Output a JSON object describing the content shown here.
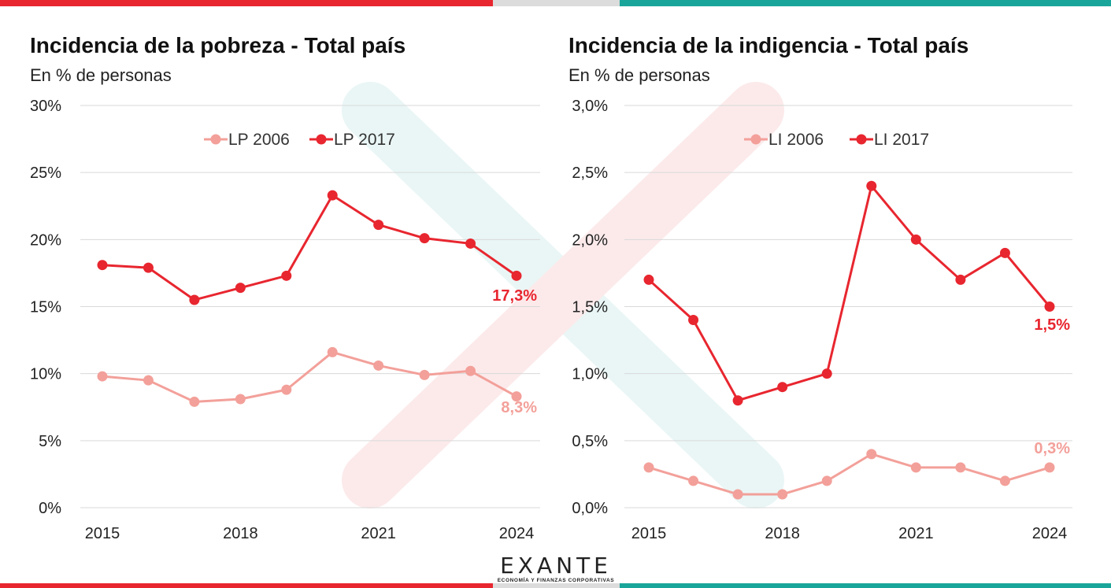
{
  "colors": {
    "red": "#e8262f",
    "pink": "#f3a09a",
    "teal": "#1aa59a",
    "grey": "#dcdcdc",
    "grid": "#d9d9d9"
  },
  "logo": {
    "name": "EXANTE",
    "tagline": "ECONOMÍA Y FINANZAS CORPORATIVAS"
  },
  "chart_data": [
    {
      "type": "line",
      "title": "Incidencia de la pobreza - Total país",
      "subtitle": "En % de personas",
      "x": [
        2015,
        2016,
        2017,
        2018,
        2019,
        2020,
        2021,
        2022,
        2023,
        2024
      ],
      "xticks": [
        "2015",
        "2018",
        "2021",
        "2024"
      ],
      "ylim": [
        0,
        30
      ],
      "yticks": [
        "0%",
        "5%",
        "10%",
        "15%",
        "20%",
        "25%",
        "30%"
      ],
      "grid": true,
      "legend_position": "top-center",
      "series": [
        {
          "name": "LP 2006",
          "color": "#f3a09a",
          "values": [
            9.8,
            9.5,
            7.9,
            8.1,
            8.8,
            11.6,
            10.6,
            9.9,
            10.2,
            8.3
          ],
          "end_label": "8,3%"
        },
        {
          "name": "LP 2017",
          "color": "#e8262f",
          "values": [
            18.1,
            17.9,
            15.5,
            16.4,
            17.3,
            23.3,
            21.1,
            20.1,
            19.7,
            17.3
          ],
          "end_label": "17,3%"
        }
      ]
    },
    {
      "type": "line",
      "title": "Incidencia de la indigencia - Total país",
      "subtitle": "En % de personas",
      "x": [
        2015,
        2016,
        2017,
        2018,
        2019,
        2020,
        2021,
        2022,
        2023,
        2024
      ],
      "xticks": [
        "2015",
        "2018",
        "2021",
        "2024"
      ],
      "ylim": [
        0,
        3
      ],
      "yticks": [
        "0,0%",
        "0,5%",
        "1,0%",
        "1,5%",
        "2,0%",
        "2,5%",
        "3,0%"
      ],
      "grid": true,
      "legend_position": "top-center",
      "series": [
        {
          "name": "LI 2006",
          "color": "#f3a09a",
          "values": [
            0.3,
            0.2,
            0.1,
            0.1,
            0.2,
            0.4,
            0.3,
            0.3,
            0.2,
            0.3
          ],
          "end_label": "0,3%"
        },
        {
          "name": "LI 2017",
          "color": "#e8262f",
          "values": [
            1.7,
            1.4,
            0.8,
            0.9,
            1.0,
            2.4,
            2.0,
            1.7,
            1.9,
            1.5
          ],
          "end_label": "1,5%"
        }
      ]
    }
  ]
}
